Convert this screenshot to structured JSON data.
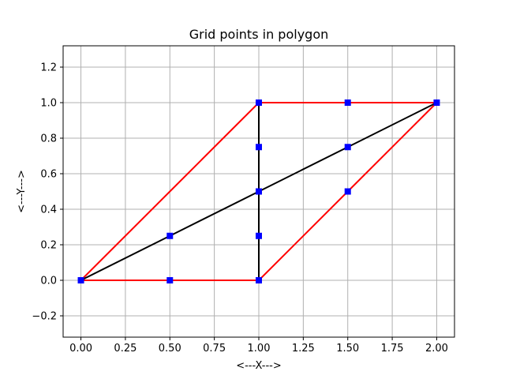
{
  "chart_data": {
    "type": "line",
    "title": "Grid points in polygon",
    "xlabel": "<---X--->",
    "ylabel": "<---Y--->",
    "xlim": [
      -0.1,
      2.1
    ],
    "ylim": [
      -0.32,
      1.32
    ],
    "x_ticks": [
      0.0,
      0.25,
      0.5,
      0.75,
      1.0,
      1.25,
      1.5,
      1.75,
      2.0
    ],
    "x_tick_labels": [
      "0.00",
      "0.25",
      "0.50",
      "0.75",
      "1.00",
      "1.25",
      "1.50",
      "1.75",
      "2.00"
    ],
    "y_ticks": [
      -0.2,
      0.0,
      0.2,
      0.4,
      0.6,
      0.8,
      1.0,
      1.2
    ],
    "y_tick_labels": [
      "−0.2",
      "0.0",
      "0.2",
      "0.4",
      "0.6",
      "0.8",
      "1.0",
      "1.2"
    ],
    "grid": true,
    "series": [
      {
        "color": "#ff0000",
        "x": [
          0.0,
          0.5,
          1.0,
          1.5,
          2.0,
          1.5,
          1.0,
          0.5,
          0.0
        ],
        "y": [
          0.0,
          0.5,
          1.0,
          1.0,
          1.0,
          0.5,
          0.0,
          0.0,
          0.0
        ]
      },
      {
        "color": "#000000",
        "x": [
          0.0,
          0.5,
          1.0,
          1.5,
          2.0
        ],
        "y": [
          0.0,
          0.25,
          0.5,
          0.75,
          1.0
        ]
      },
      {
        "color": "#000000",
        "x": [
          1.0,
          1.0,
          1.0,
          1.0,
          1.0
        ],
        "y": [
          0.0,
          0.25,
          0.5,
          0.75,
          1.0
        ]
      }
    ],
    "points": {
      "color": "#0000ff",
      "marker": "square",
      "x": [
        0.0,
        0.5,
        1.0,
        0.5,
        1.0,
        1.0,
        1.0,
        1.0,
        1.5,
        1.5,
        1.5,
        2.0
      ],
      "y": [
        0.0,
        0.0,
        0.0,
        0.25,
        0.25,
        0.5,
        0.75,
        1.0,
        1.0,
        0.75,
        0.5,
        1.0
      ]
    }
  }
}
